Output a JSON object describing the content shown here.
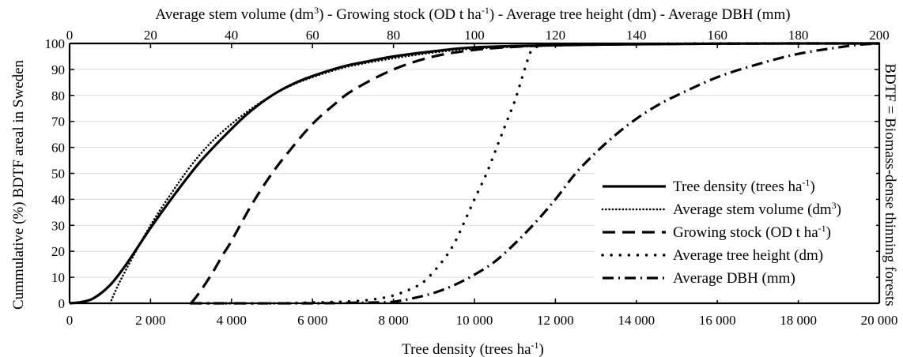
{
  "chart_data": {
    "type": "line",
    "title": "",
    "xlabel_bottom": {
      "text": "Tree density (trees ha",
      "sup": "-1",
      "close": ")"
    },
    "xlabel_top": {
      "parts": [
        {
          "text": "Average stem volume (dm"
        },
        {
          "sup": "3"
        },
        {
          "text": ") - Growing stock (OD t ha"
        },
        {
          "sup": "-1"
        },
        {
          "text": ") - Average tree height (dm) - Average DBH (mm)"
        }
      ]
    },
    "ylabel_left": "Cummulative (%) BDTF areal in Sweden",
    "ylabel_right": "BDTF = Biomass-dense thinning forests",
    "x_bottom": {
      "lim": [
        0,
        20000
      ],
      "ticks": [
        0,
        2000,
        4000,
        6000,
        8000,
        10000,
        12000,
        14000,
        16000,
        18000,
        20000
      ],
      "tick_labels": [
        "0",
        "2 000",
        "4 000",
        "6 000",
        "8 000",
        "10 000",
        "12 000",
        "14 000",
        "16 000",
        "18 000",
        "20 000"
      ]
    },
    "x_top": {
      "lim": [
        0,
        200
      ],
      "ticks": [
        0,
        20,
        40,
        60,
        80,
        100,
        120,
        140,
        160,
        180,
        200
      ],
      "tick_labels": [
        "0",
        "20",
        "40",
        "60",
        "80",
        "100",
        "120",
        "140",
        "160",
        "180",
        "200"
      ]
    },
    "y": {
      "lim": [
        0,
        100
      ],
      "ticks": [
        0,
        10,
        20,
        30,
        40,
        50,
        60,
        70,
        80,
        90,
        100
      ],
      "tick_labels": [
        "0",
        "10",
        "20",
        "30",
        "40",
        "50",
        "60",
        "70",
        "80",
        "90",
        "100"
      ]
    },
    "grid": "horizontal",
    "legend": {
      "position": "lower-right"
    },
    "series": [
      {
        "name": "Tree density (trees ha",
        "name_sup": "-1",
        "name_close": ")",
        "axis": "bottom",
        "style": "solid",
        "x": [
          0,
          300,
          600,
          1000,
          1400,
          2000,
          2600,
          3200,
          3800,
          4400,
          5000,
          5600,
          6200,
          6800,
          7400,
          8000,
          9000,
          10000,
          12000,
          14000,
          16000,
          18000,
          20000
        ],
        "y": [
          0,
          0.5,
          2,
          7,
          15,
          29,
          42,
          54,
          64,
          73,
          80,
          85,
          88.5,
          91.3,
          93.2,
          95,
          97,
          98.5,
          99.3,
          99.7,
          99.9,
          100,
          100
        ]
      },
      {
        "name": "Average stem volume (dm",
        "name_sup": "3",
        "name_close": ")",
        "axis": "top",
        "style": "dotted",
        "x": [
          10,
          12,
          15,
          20,
          25,
          30,
          35,
          40,
          45,
          50,
          55,
          60,
          65,
          70,
          80,
          90,
          100,
          120,
          140,
          160,
          180,
          200
        ],
        "y": [
          0,
          7,
          16,
          30,
          42,
          53,
          62,
          69,
          75,
          80,
          84,
          87,
          89.5,
          91.5,
          94.3,
          96.5,
          98,
          99.2,
          99.6,
          99.9,
          100,
          100
        ]
      },
      {
        "name": "Growing stock (OD t ha",
        "name_sup": "-1",
        "name_close": ")",
        "axis": "top",
        "style": "dashed",
        "x": [
          30,
          32,
          35,
          38,
          40,
          45,
          50,
          55,
          60,
          65,
          70,
          80,
          90,
          100,
          110,
          120,
          140,
          160,
          180,
          200
        ],
        "y": [
          0,
          4,
          11,
          19,
          24,
          38,
          50,
          60,
          69,
          76,
          82,
          90,
          95,
          97.5,
          98.7,
          99.3,
          99.7,
          99.9,
          100,
          100
        ]
      },
      {
        "name": "Average tree height (dm)",
        "axis": "top",
        "style": "sparse-dotted",
        "x": [
          30,
          50,
          60,
          70,
          75,
          80,
          85,
          88,
          92,
          95,
          98,
          100,
          103,
          106,
          108,
          110,
          112,
          113,
          114,
          116,
          120,
          140,
          160,
          180,
          200
        ],
        "y": [
          0,
          0,
          0.3,
          0.8,
          1.5,
          3,
          6,
          9,
          16,
          23,
          33,
          40,
          50,
          62,
          70,
          78,
          88,
          93,
          97,
          99,
          99.5,
          99.8,
          100,
          100,
          100
        ]
      },
      {
        "name": "Average DBH (mm)",
        "axis": "top",
        "style": "dash-dot",
        "x": [
          30,
          60,
          70,
          75,
          80,
          85,
          90,
          95,
          100,
          105,
          110,
          115,
          120,
          125,
          130,
          135,
          140,
          145,
          150,
          160,
          170,
          180,
          190,
          195,
          200
        ],
        "y": [
          0,
          0,
          0.2,
          0.3,
          0.6,
          2,
          4,
          7,
          11,
          16,
          23,
          31,
          40,
          50,
          58,
          65,
          71,
          76,
          80,
          87,
          92,
          96,
          98.5,
          99.5,
          100
        ]
      }
    ]
  }
}
